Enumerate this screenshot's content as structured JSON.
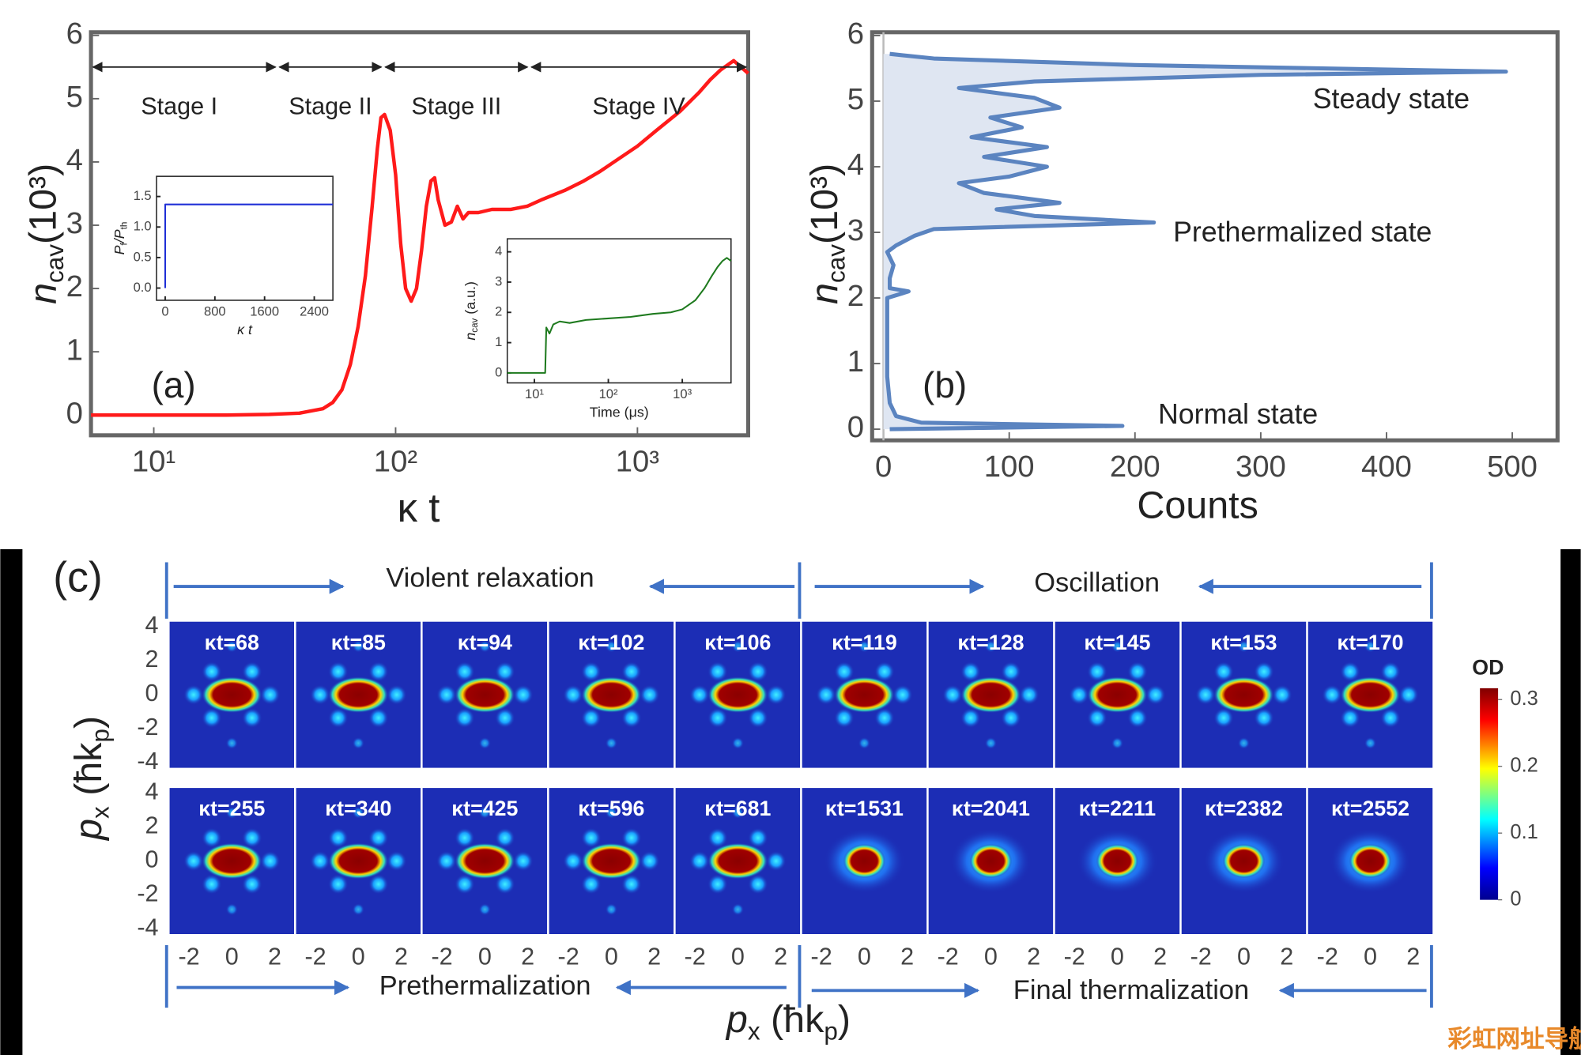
{
  "chart_data": [
    {
      "type": "line",
      "panel_label": "(a)",
      "x_label": "κ t",
      "y_label": {
        "symbol": "n",
        "subscript": "cav",
        "unit": "(10³)"
      },
      "x_scale": "log",
      "xlim": [
        5.5,
        2870
      ],
      "xticks": [
        {
          "value": 10,
          "label": "10¹"
        },
        {
          "value": 100,
          "label": "10²"
        },
        {
          "value": 1000,
          "label": "10³"
        }
      ],
      "ylim": [
        -0.32,
        6.05
      ],
      "yticks": [
        0,
        1,
        2,
        3,
        4,
        5,
        6
      ],
      "stages": [
        "Stage I",
        "Stage II",
        "Stage III",
        "Stage IV"
      ],
      "series": [
        {
          "color": "#ff1a1a",
          "x": [
            5.5,
            8,
            10,
            15,
            20,
            30,
            40,
            50,
            55,
            60,
            65,
            70,
            75,
            80,
            84,
            87,
            90,
            95,
            100,
            105,
            110,
            116,
            122,
            128,
            134,
            140,
            145,
            150,
            160,
            170,
            180,
            190,
            200,
            220,
            250,
            300,
            350,
            400,
            500,
            600,
            700,
            800,
            1000,
            1200,
            1500,
            1800,
            2000,
            2200,
            2500,
            2870
          ],
          "values": [
            0,
            0,
            0,
            0,
            0,
            0.01,
            0.03,
            0.1,
            0.2,
            0.4,
            0.8,
            1.4,
            2.2,
            3.3,
            4.2,
            4.7,
            4.75,
            4.5,
            3.8,
            2.7,
            2.0,
            1.8,
            2.0,
            2.6,
            3.3,
            3.7,
            3.75,
            3.4,
            3.0,
            3.05,
            3.3,
            3.1,
            3.2,
            3.2,
            3.25,
            3.25,
            3.3,
            3.4,
            3.55,
            3.7,
            3.85,
            4.0,
            4.25,
            4.5,
            4.8,
            5.1,
            5.3,
            5.45,
            5.6,
            5.4
          ]
        }
      ],
      "insets": [
        {
          "type": "line",
          "x_label": "κ t",
          "y_label": {
            "symbol": "P",
            "subscript": "f",
            "divider": "/P",
            "subscript2": "th"
          },
          "xlim": [
            -140,
            2700
          ],
          "xticks": [
            0,
            800,
            1600,
            2400
          ],
          "ylim": [
            -0.2,
            1.83
          ],
          "yticks": [
            {
              "value": 0,
              "label": "0.0"
            },
            0.5,
            {
              "value": 1,
              "label": "1.0"
            },
            1.5
          ],
          "series": [
            {
              "color": "#1f2fd6",
              "x": [
                0,
                0,
                2700
              ],
              "values": [
                0,
                1.37,
                1.37
              ]
            }
          ]
        },
        {
          "type": "line",
          "x_label": "Time (μs)",
          "y_label": {
            "symbol": "n",
            "subscript": "cav",
            "unit": " (a.u.)"
          },
          "x_scale": "log",
          "xlim": [
            4.3,
            4560
          ],
          "xticks": [
            {
              "value": 10,
              "label": "10¹"
            },
            {
              "value": 100,
              "label": "10²"
            },
            {
              "value": 1000,
              "label": "10³"
            }
          ],
          "ylim": [
            -0.33,
            4.43
          ],
          "yticks": [
            0,
            1,
            2,
            3,
            4
          ],
          "series": [
            {
              "color": "#1e7a1e",
              "x": [
                4.3,
                10,
                14,
                14.5,
                16,
                18,
                22,
                30,
                50,
                100,
                200,
                400,
                700,
                1000,
                1500,
                2000,
                2500,
                3000,
                3500,
                4000,
                4560
              ],
              "values": [
                0,
                0,
                0,
                1.5,
                1.3,
                1.6,
                1.7,
                1.65,
                1.75,
                1.8,
                1.85,
                1.95,
                2.0,
                2.1,
                2.4,
                2.8,
                3.2,
                3.5,
                3.7,
                3.8,
                3.7
              ]
            }
          ]
        }
      ]
    },
    {
      "type": "area",
      "orientation": "horizontal",
      "panel_label": "(b)",
      "x_label": "Counts",
      "y_label": {
        "symbol": "n",
        "subscript": "cav",
        "unit": "(10³)"
      },
      "xlim": [
        -9,
        536
      ],
      "xticks": [
        0,
        100,
        200,
        300,
        400,
        500
      ],
      "ylim": [
        -0.17,
        6.05
      ],
      "yticks": [
        0,
        1,
        2,
        3,
        4,
        5,
        6
      ],
      "color": "#5b84c0",
      "fill_color": "#dfe6f2",
      "annotations": [
        "Steady state",
        "Prethermalized state",
        "Normal state"
      ],
      "y": [
        0,
        0.05,
        0.1,
        0.2,
        0.4,
        0.8,
        1.2,
        1.6,
        2.0,
        2.1,
        2.15,
        2.3,
        2.5,
        2.7,
        2.8,
        2.95,
        3.05,
        3.15,
        3.25,
        3.35,
        3.45,
        3.6,
        3.75,
        3.85,
        4.0,
        4.15,
        4.3,
        4.45,
        4.6,
        4.75,
        4.9,
        5.05,
        5.2,
        5.3,
        5.4,
        5.45,
        5.55,
        5.65,
        5.72
      ],
      "values": [
        5,
        190,
        30,
        10,
        5,
        3,
        3,
        3,
        3,
        20,
        5,
        5,
        8,
        3,
        10,
        25,
        40,
        215,
        120,
        90,
        140,
        80,
        60,
        100,
        130,
        80,
        130,
        70,
        110,
        85,
        140,
        120,
        60,
        120,
        300,
        495,
        200,
        40,
        5
      ]
    },
    {
      "type": "image_grid",
      "panel_label": "(c)",
      "top_labels": [
        "Violent relaxation",
        "Oscillation"
      ],
      "bottom_labels": [
        "Prethermalization",
        "Final thermalization"
      ],
      "x_label": {
        "symbol": "p",
        "subscript": "x",
        "unit_open": " (ħk",
        "unit_subscript": "p",
        "unit_close": ")"
      },
      "y_label": {
        "symbol": "p",
        "subscript": "x",
        "unit_open": " (ħk",
        "unit_subscript": "p",
        "unit_close": ")"
      },
      "xlim": [
        -2.95,
        2.95
      ],
      "xticks": [
        -2,
        0,
        2
      ],
      "ylim": [
        -4.3,
        4.3
      ],
      "yticks": [
        4,
        2,
        0,
        -2,
        -4
      ],
      "panels": [
        "κt=68",
        "κt=85",
        "κt=94",
        "κt=102",
        "κt=106",
        "κt=119",
        "κt=128",
        "κt=145",
        "κt=153",
        "κt=170",
        "κt=255",
        "κt=340",
        "κt=425",
        "κt=596",
        "κt=681",
        "κt=1531",
        "κt=2041",
        "κt=2211",
        "κt=2382",
        "κt=2552"
      ],
      "colorbar": {
        "label": "OD",
        "clim": [
          0,
          0.317
        ],
        "ticks": [
          0.3,
          0.2,
          0.1,
          0
        ]
      }
    }
  ],
  "watermark": "彩虹网址导航"
}
